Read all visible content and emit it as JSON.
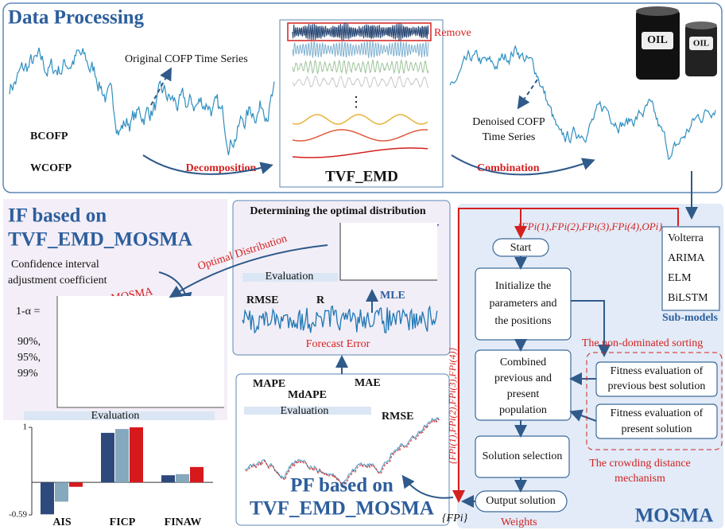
{
  "data_processing": {
    "title": "Data Processing",
    "original_series_label": "Original COFP Time Series",
    "series_names": [
      "BCOFP",
      "WCOFP"
    ],
    "decomposition": "Decomposition",
    "remove": "Remove",
    "tvf_emd": "TVF_EMD",
    "combination": "Combination",
    "denoised_series_label": [
      "Denoised COFP",
      "Time Series"
    ],
    "barrel_labels": [
      "OIL",
      "OIL"
    ]
  },
  "interval_forecast": {
    "title": [
      "IF based on",
      "TVF_EMD_MOSMA"
    ],
    "coefficient_label": [
      "Confidence interval",
      "adjustment coefficient"
    ],
    "method": "MOSMA",
    "alpha_label": "1-α =",
    "levels": [
      "90%,",
      "95%,",
      "99%"
    ],
    "evaluation": "Evaluation",
    "evaluation_chart": {
      "categories": [
        "AIS",
        "FICP",
        "FINAW"
      ],
      "series": [
        {
          "color": "#2e4a7d",
          "values": [
            -0.58,
            0.9,
            0.13
          ]
        },
        {
          "color": "#86a8bd",
          "values": [
            -0.35,
            0.97,
            0.15
          ]
        },
        {
          "color": "#d7191c",
          "values": [
            -0.08,
            1,
            0.28
          ]
        }
      ],
      "ylim": [
        -0.59,
        1
      ],
      "yticks": [
        -0.59,
        1
      ]
    }
  },
  "distribution": {
    "title": "Determining the optimal distribution",
    "arrow_label": "Optimal Distribution",
    "evaluation": "Evaluation",
    "metrics": [
      "RMSE",
      "R"
    ],
    "estimation": "MLE",
    "error_label": "Forecast Error"
  },
  "point_forecast": {
    "metrics": [
      "MAPE",
      "MdAPE",
      "MAE",
      "RMSE"
    ],
    "evaluation": "Evaluation",
    "title": [
      "PF based on",
      "TVF_EMD_MOSMA"
    ]
  },
  "mosma": {
    "title": "MOSMA",
    "input_set": "{FPi(1),FPi(2),FPi(3),FPi(4),OPi}",
    "weight_set": "{FPi(1),FPi(2),FPi(3),FPi(4)}",
    "sub_models_title": "Sub-models",
    "sub_models": [
      "Volterra",
      "ARIMA",
      "ELM",
      "BiLSTM"
    ],
    "steps": {
      "start": "Start",
      "initialize": [
        "Initialize the",
        "parameters and",
        "the positions"
      ],
      "combine": [
        "Combined",
        "previous and",
        "present",
        "population"
      ],
      "selection": "Solution selection",
      "output": "Output solution"
    },
    "non_dominated": "The non-dominated sorting",
    "fitness_previous": [
      "Fitness evaluation of",
      "previous best solution"
    ],
    "fitness_present": [
      "Fitness evaluation of",
      "present solution"
    ],
    "crowding": [
      "The crowding distance",
      "mechanism"
    ],
    "weights": "Weights",
    "output_set": "{FPi}"
  }
}
